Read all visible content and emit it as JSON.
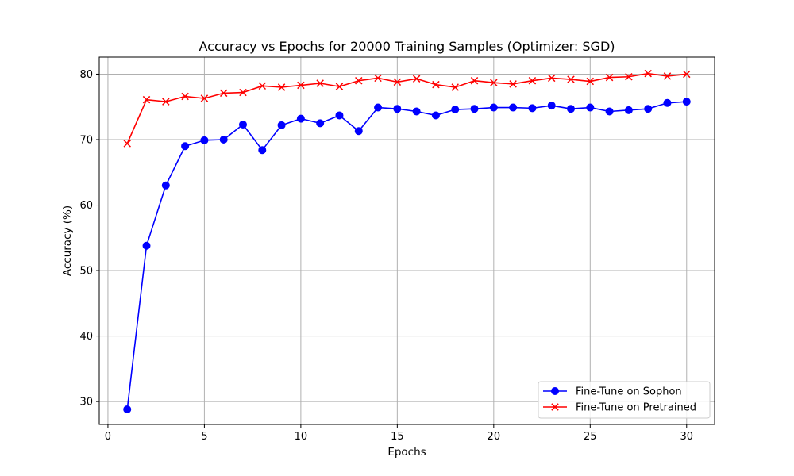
{
  "chart_data": {
    "type": "line",
    "title": "Accuracy vs Epochs for 20000 Training Samples (Optimizer: SGD)",
    "xlabel": "Epochs",
    "ylabel": "Accuracy (%)",
    "xlim": [
      -0.45,
      31.45
    ],
    "ylim": [
      26.5,
      82.6
    ],
    "xticks": [
      0,
      5,
      10,
      15,
      20,
      25,
      30
    ],
    "yticks": [
      30,
      40,
      50,
      60,
      70,
      80
    ],
    "grid": true,
    "legend_position": "lower-right",
    "x": [
      1,
      2,
      3,
      4,
      5,
      6,
      7,
      8,
      9,
      10,
      11,
      12,
      13,
      14,
      15,
      16,
      17,
      18,
      19,
      20,
      21,
      22,
      23,
      24,
      25,
      26,
      27,
      28,
      29,
      30
    ],
    "series": [
      {
        "name": "Fine-Tune on Sophon",
        "color": "#0000ff",
        "marker": "circle",
        "values": [
          28.8,
          53.8,
          63.0,
          69.0,
          69.9,
          70.0,
          72.3,
          68.4,
          72.2,
          73.2,
          72.5,
          73.7,
          71.3,
          74.9,
          74.7,
          74.3,
          73.7,
          74.6,
          74.7,
          74.9,
          74.9,
          74.8,
          75.2,
          74.7,
          74.9,
          74.3,
          74.5,
          74.7,
          75.6,
          75.8
        ]
      },
      {
        "name": "Fine-Tune on Pretrained",
        "color": "#ff0000",
        "marker": "x",
        "values": [
          69.4,
          76.1,
          75.8,
          76.6,
          76.3,
          77.1,
          77.2,
          78.2,
          78.0,
          78.3,
          78.6,
          78.1,
          79.0,
          79.4,
          78.8,
          79.3,
          78.4,
          78.0,
          79.0,
          78.7,
          78.5,
          79.0,
          79.4,
          79.2,
          78.9,
          79.5,
          79.6,
          80.1,
          79.7,
          80.0
        ]
      }
    ]
  }
}
